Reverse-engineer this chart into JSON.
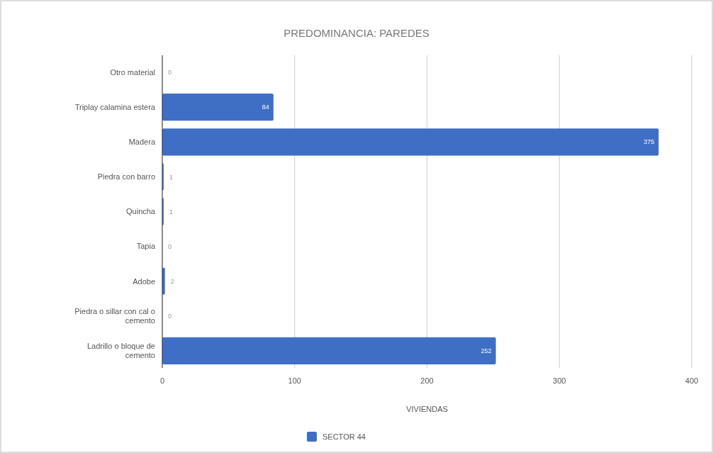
{
  "chart_data": {
    "type": "bar",
    "orientation": "horizontal",
    "title": "PREDOMINANCIA: PAREDES",
    "xlabel": "VIVIENDAS",
    "categories": [
      "Otro material",
      "Triplay calamina estera",
      "Madera",
      "Piedra con barro",
      "Quincha",
      "Tapia",
      "Adobe",
      "Piedra o sillar con cal o cemento",
      "Ladrillo o bloque de cemento"
    ],
    "series": [
      {
        "name": "SECTOR 44",
        "color": "#3f6fc4",
        "values": [
          0,
          84,
          375,
          1,
          1,
          0,
          2,
          0,
          252
        ]
      }
    ],
    "xlim": [
      0,
      400
    ],
    "xticks": [
      0,
      100,
      200,
      300,
      400
    ],
    "grid": "x",
    "data_labels": true,
    "legend": "bottom"
  }
}
